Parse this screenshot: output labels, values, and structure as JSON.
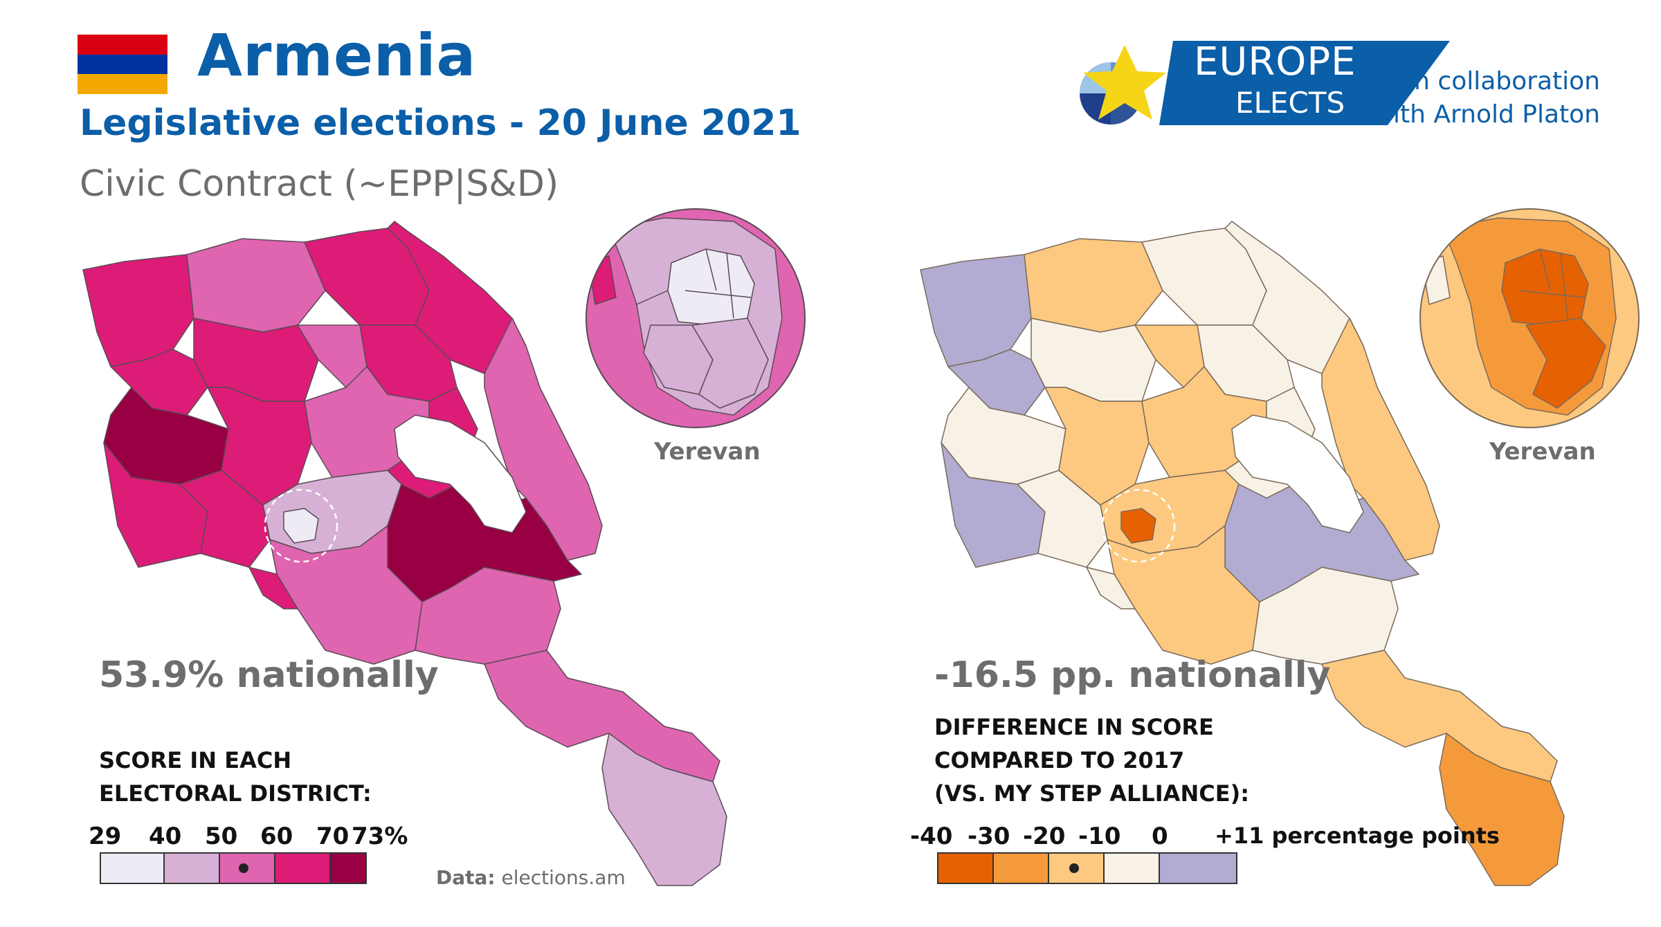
{
  "header": {
    "country": "Armenia",
    "subtitle": "Legislative elections - 20 June 2021",
    "party": "Civic Contract (~EPP|S&D)"
  },
  "branding": {
    "logo_line1": "EUROPE",
    "logo_line2": "ELECTS",
    "collab_line1": "in collaboration",
    "collab_line2": "with Arnold Platon"
  },
  "flag_colors": [
    "#d90012",
    "#0033a0",
    "#f2a800"
  ],
  "left_map": {
    "national": "53.9% nationally",
    "inset_label": "Yerevan",
    "legend_title_1": "SCORE IN EACH",
    "legend_title_2": "ELECTORAL DISTRICT:",
    "ticks": [
      "29",
      "40",
      "50",
      "60",
      "70",
      "73%"
    ],
    "colors": [
      "#eeebf4",
      "#d6b1d5",
      "#df65b0",
      "#dd1c77",
      "#980043"
    ],
    "national_bin": 2
  },
  "right_map": {
    "national": "-16.5 pp. nationally",
    "inset_label": "Yerevan",
    "legend_title_1": "DIFFERENCE IN SCORE",
    "legend_title_2": "COMPARED TO 2017",
    "legend_title_3": "(VS. MY STEP ALLIANCE):",
    "ticks": [
      "-40",
      "-30",
      "-20",
      "-10",
      "0",
      "+11 percentage points"
    ],
    "colors": [
      "#e66101",
      "#f59a3b",
      "#fdc980",
      "#f8f1e6",
      "#b2abd2"
    ],
    "national_bin": 2
  },
  "source": {
    "label": "Data:",
    "value": "elections.am"
  }
}
